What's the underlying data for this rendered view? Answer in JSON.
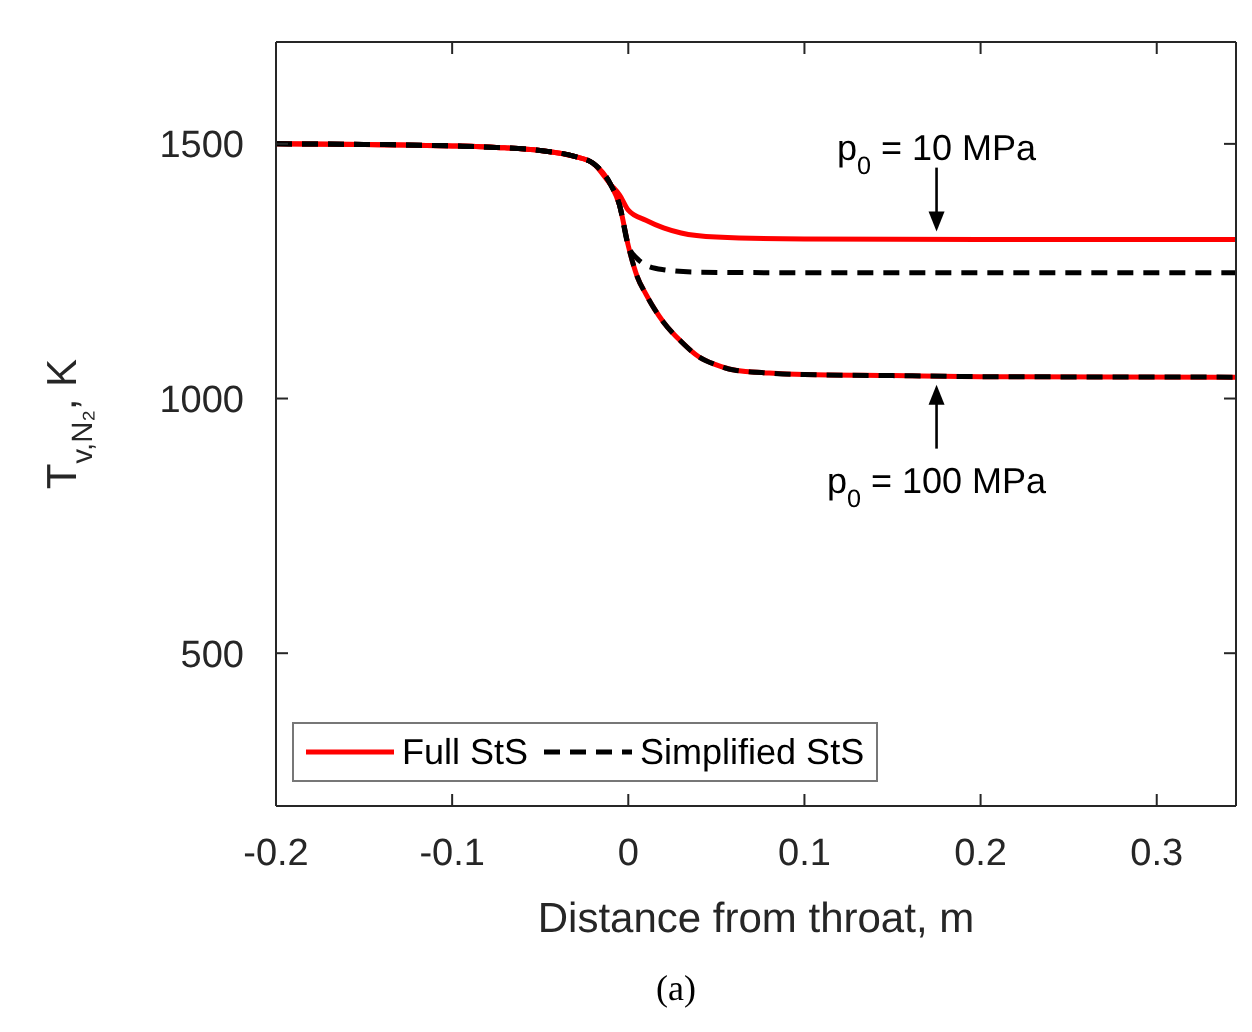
{
  "chart_data": {
    "type": "line",
    "xlabel": "Distance from throat, m",
    "ylabel": "T$_{v,N₂}$, K",
    "xlim": [
      -0.2,
      0.345
    ],
    "ylim": [
      200,
      1700
    ],
    "xticks": [
      -0.2,
      -0.1,
      0,
      0.1,
      0.2,
      0.3
    ],
    "yticks": [
      500,
      1000,
      1500
    ],
    "grid": false,
    "legend": "bottom left",
    "marker": "none",
    "series": [
      {
        "name": "Full StS",
        "color": "#ff0000",
        "line_style": "solid",
        "x": [
          -0.2,
          -0.15,
          -0.1,
          -0.075,
          -0.05,
          -0.03,
          -0.02,
          -0.01,
          -0.005,
          0,
          0.01,
          0.02,
          0.03,
          0.05,
          0.1,
          0.2,
          0.345
        ],
        "values": [
          1500,
          1499,
          1496,
          1493,
          1487,
          1475,
          1462,
          1420,
          1400,
          1370,
          1350,
          1335,
          1325,
          1317,
          1313,
          1312,
          1312
        ]
      },
      {
        "color": "#ff0000",
        "line_style": "solid",
        "x": [
          -0.2,
          -0.15,
          -0.1,
          -0.075,
          -0.05,
          -0.03,
          -0.02,
          -0.01,
          -0.005,
          0,
          0.005,
          0.01,
          0.015,
          0.02,
          0.03,
          0.04,
          0.05,
          0.06,
          0.08,
          0.1,
          0.15,
          0.2,
          0.345
        ],
        "values": [
          1500,
          1499,
          1496,
          1493,
          1487,
          1475,
          1462,
          1420,
          1380,
          1300,
          1240,
          1205,
          1175,
          1150,
          1112,
          1082,
          1066,
          1056,
          1050,
          1047,
          1045,
          1043,
          1042
        ]
      },
      {
        "name": "Simplified StS",
        "color": "#000000",
        "line_style": "dashed",
        "x": [
          -0.2,
          -0.15,
          -0.1,
          -0.075,
          -0.05,
          -0.03,
          -0.02,
          -0.01,
          -0.005,
          0,
          0.005,
          0.01,
          0.02,
          0.04,
          0.1,
          0.345
        ],
        "values": [
          1500,
          1499,
          1496,
          1493,
          1487,
          1475,
          1462,
          1420,
          1380,
          1300,
          1275,
          1262,
          1253,
          1248,
          1247,
          1247
        ]
      },
      {
        "color": "#000000",
        "line_style": "dashed",
        "x": [
          -0.2,
          -0.15,
          -0.1,
          -0.075,
          -0.05,
          -0.03,
          -0.02,
          -0.01,
          -0.005,
          0,
          0.005,
          0.01,
          0.015,
          0.02,
          0.03,
          0.04,
          0.05,
          0.06,
          0.08,
          0.1,
          0.15,
          0.2,
          0.345
        ],
        "values": [
          1500,
          1499,
          1496,
          1493,
          1487,
          1475,
          1462,
          1420,
          1380,
          1300,
          1240,
          1205,
          1175,
          1150,
          1112,
          1082,
          1066,
          1056,
          1050,
          1047,
          1045,
          1043,
          1042
        ]
      }
    ],
    "annotations": [
      {
        "text": "p$_{0}$ = 10 MPa",
        "x": 0.175,
        "y": 1312
      },
      {
        "text": "p$_{0}$ = 100 MPa",
        "x": 0.175,
        "y": 1043
      },
      "(a)"
    ]
  }
}
